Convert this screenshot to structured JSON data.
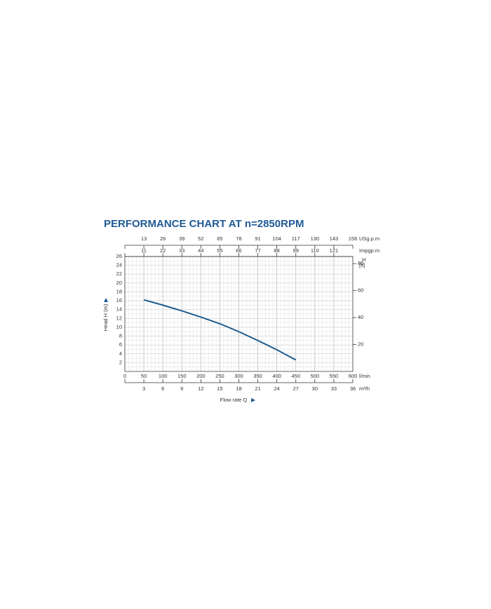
{
  "chart_data": {
    "type": "line",
    "title": "PERFORMANCE CHART AT n=2850RPM",
    "x_label": "Flow rate Q",
    "x_unit": "l/min",
    "y_label": "Head H (m)",
    "y2_label": "H",
    "y2_unit": "[ft]",
    "x": [
      50,
      100,
      150,
      200,
      250,
      300,
      350,
      400,
      450
    ],
    "series": [
      {
        "color": "#1d5a8c",
        "values": [
          16.2,
          15.0,
          13.7,
          12.3,
          10.8,
          9.0,
          7.0,
          4.9,
          2.6
        ]
      }
    ],
    "xlim": [
      0,
      600
    ],
    "xticks": [
      0,
      50,
      100,
      150,
      200,
      250,
      300,
      350,
      400,
      450,
      500,
      550,
      600
    ],
    "ylim": [
      0,
      26
    ],
    "yticks": [
      2,
      4,
      6,
      8,
      10,
      12,
      14,
      16,
      18,
      20,
      22,
      24,
      26
    ],
    "y2lim": [
      0,
      85.3
    ],
    "y2ticks": [
      20,
      40,
      60,
      80
    ],
    "extra_x_axes": [
      {
        "unit": "USg.p.m",
        "position": "top",
        "lim": [
          0,
          156
        ],
        "ticks": [
          13,
          26,
          39,
          52,
          65,
          78,
          91,
          104,
          117,
          130,
          143,
          156
        ]
      },
      {
        "unit": "Impgp.m",
        "position": "top",
        "lim": [
          0,
          132
        ],
        "ticks": [
          11,
          22,
          33,
          44,
          55,
          66,
          77,
          88,
          99,
          110,
          121
        ]
      },
      {
        "unit": "m³/h",
        "position": "bottom",
        "lim": [
          0,
          36
        ],
        "ticks": [
          3,
          6,
          9,
          12,
          15,
          18,
          21,
          24,
          27,
          30,
          33,
          36
        ]
      }
    ],
    "grid": true
  }
}
